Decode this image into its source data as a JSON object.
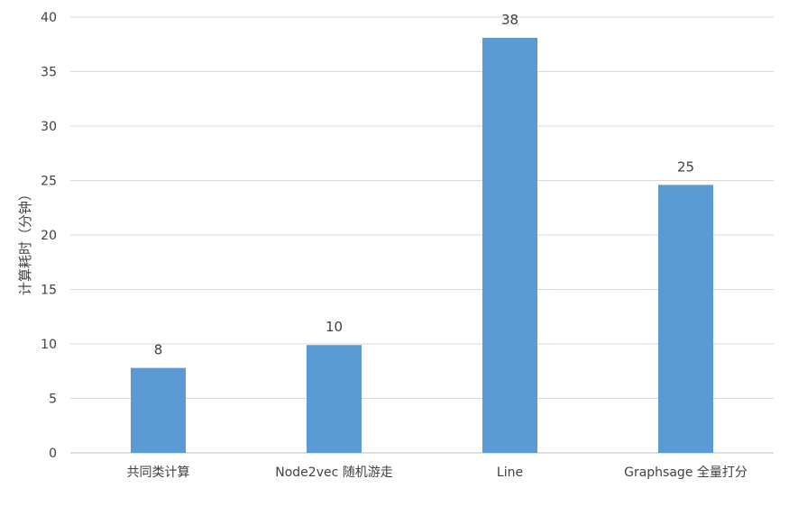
{
  "chart_data": {
    "type": "bar",
    "title": "",
    "xlabel": "",
    "ylabel": "计算耗时（分钟）",
    "categories": [
      "共同类计算",
      "Node2vec 随机游走",
      "Line",
      "Graphsage 全量打分"
    ],
    "values": [
      7.8,
      9.9,
      38.1,
      24.6
    ],
    "data_labels": [
      "8",
      "10",
      "38",
      "25"
    ],
    "ylim": [
      0,
      40
    ],
    "yticks": [
      0,
      5,
      10,
      15,
      20,
      25,
      30,
      35,
      40
    ],
    "grid": true,
    "legend": "none",
    "colors": {
      "bar": "#5b9bd5",
      "grid": "#d9d9d9",
      "axis": "#bfbfbf",
      "text": "#404040"
    }
  }
}
